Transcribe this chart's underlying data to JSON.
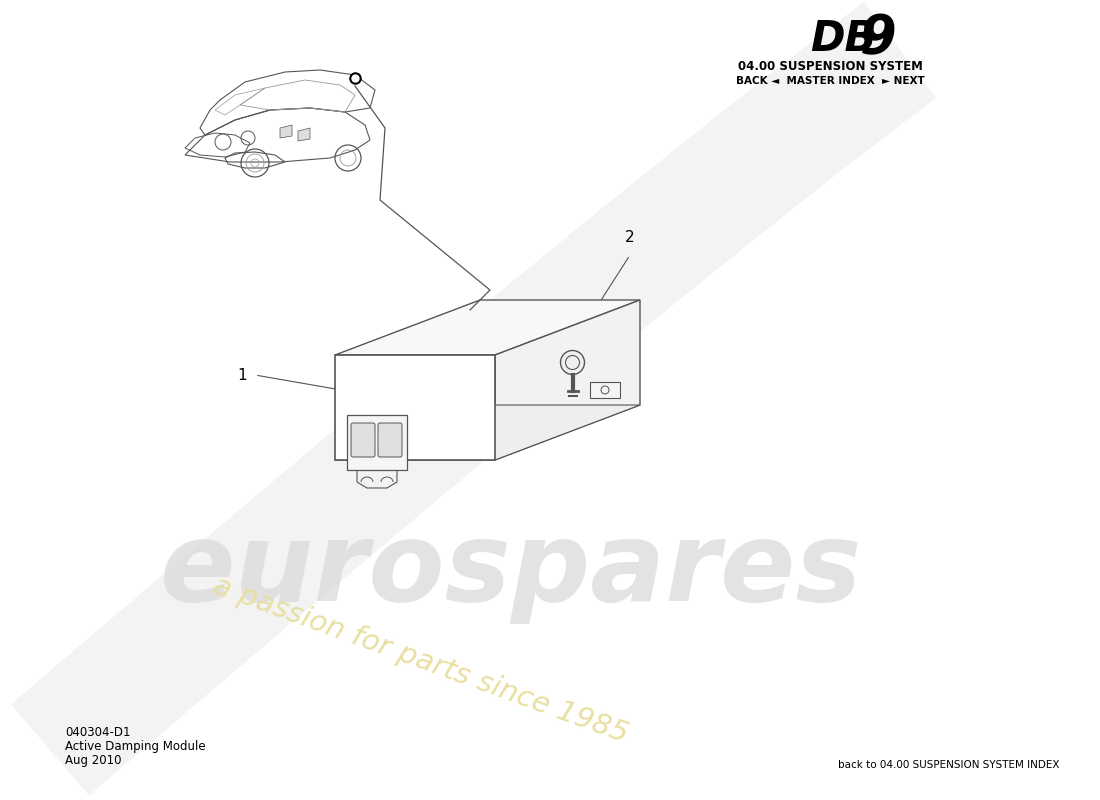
{
  "bg_color": "#ffffff",
  "title_db9_part1": "DB",
  "title_db9_part2": "9",
  "title_system": "04.00 SUSPENSION SYSTEM",
  "nav_text": "BACK ◄  MASTER INDEX  ► NEXT",
  "part_number": "040304-D1",
  "part_name": "Active Damping Module",
  "part_date": "Aug 2010",
  "footer_text": "back to 04.00 SUSPENSION SYSTEM INDEX",
  "watermark_text": "eurospares",
  "watermark_tagline": "a passion for parts since 1985",
  "label1": "1",
  "label2": "2",
  "line_color": "#555555",
  "light_line_color": "#999999",
  "watermark_text_color": "#d8d8d8",
  "watermark_tagline_color": "#e8dfa0",
  "swoosh_color": "#e8e8e8"
}
